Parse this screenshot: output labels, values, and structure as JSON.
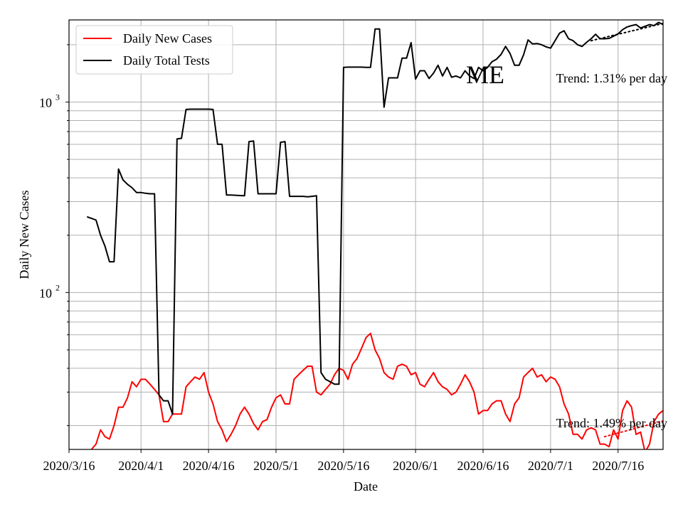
{
  "chart_data": {
    "type": "line",
    "title": "",
    "state_label": "ME",
    "xlabel": "Date",
    "ylabel": "Daily New Cases",
    "yscale": "log",
    "ylim": [
      15,
      2700
    ],
    "xlim": [
      "2020-03-16",
      "2020-07-26"
    ],
    "x_ticks": [
      "2020/3/16",
      "2020/4/1",
      "2020/4/16",
      "2020/5/1",
      "2020/5/16",
      "2020/6/1",
      "2020/6/16",
      "2020/7/1",
      "2020/7/16"
    ],
    "y_ticks": [
      {
        "base": "10",
        "exp": "2",
        "value": 100
      },
      {
        "base": "10",
        "exp": "3",
        "value": 1000
      }
    ],
    "grid": true,
    "legend_position": "upper-left",
    "series": [
      {
        "name": "Daily New Cases",
        "color": "#ff0000",
        "points": [
          [
            "2020-03-21",
            15
          ],
          [
            "2020-03-22",
            16
          ],
          [
            "2020-03-23",
            19
          ],
          [
            "2020-03-24",
            17.5
          ],
          [
            "2020-03-25",
            17
          ],
          [
            "2020-03-26",
            20
          ],
          [
            "2020-03-27",
            25
          ],
          [
            "2020-03-28",
            25
          ],
          [
            "2020-03-29",
            28
          ],
          [
            "2020-03-30",
            34
          ],
          [
            "2020-03-31",
            32
          ],
          [
            "2020-04-01",
            35
          ],
          [
            "2020-04-02",
            35
          ],
          [
            "2020-04-03",
            33
          ],
          [
            "2020-04-04",
            31
          ],
          [
            "2020-04-05",
            29
          ],
          [
            "2020-04-06",
            21
          ],
          [
            "2020-04-07",
            21
          ],
          [
            "2020-04-08",
            23
          ],
          [
            "2020-04-09",
            23
          ],
          [
            "2020-04-10",
            23
          ],
          [
            "2020-04-11",
            32
          ],
          [
            "2020-04-12",
            34
          ],
          [
            "2020-04-13",
            36
          ],
          [
            "2020-04-14",
            35
          ],
          [
            "2020-04-15",
            38
          ],
          [
            "2020-04-16",
            30
          ],
          [
            "2020-04-17",
            26
          ],
          [
            "2020-04-18",
            21
          ],
          [
            "2020-04-19",
            19
          ],
          [
            "2020-04-20",
            16.5
          ],
          [
            "2020-04-21",
            18
          ],
          [
            "2020-04-22",
            20
          ],
          [
            "2020-04-23",
            23
          ],
          [
            "2020-04-24",
            25
          ],
          [
            "2020-04-25",
            23
          ],
          [
            "2020-04-26",
            20.5
          ],
          [
            "2020-04-27",
            19
          ],
          [
            "2020-04-28",
            21
          ],
          [
            "2020-04-29",
            21.5
          ],
          [
            "2020-04-30",
            25
          ],
          [
            "2020-05-01",
            28
          ],
          [
            "2020-05-02",
            29
          ],
          [
            "2020-05-03",
            26
          ],
          [
            "2020-05-04",
            26
          ],
          [
            "2020-05-05",
            35
          ],
          [
            "2020-05-06",
            37
          ],
          [
            "2020-05-07",
            39
          ],
          [
            "2020-05-08",
            41
          ],
          [
            "2020-05-09",
            41
          ],
          [
            "2020-05-10",
            30
          ],
          [
            "2020-05-11",
            29
          ],
          [
            "2020-05-12",
            31
          ],
          [
            "2020-05-13",
            33
          ],
          [
            "2020-05-14",
            37
          ],
          [
            "2020-05-15",
            40
          ],
          [
            "2020-05-16",
            39
          ],
          [
            "2020-05-17",
            35
          ],
          [
            "2020-05-18",
            42
          ],
          [
            "2020-05-19",
            45
          ],
          [
            "2020-05-20",
            51
          ],
          [
            "2020-05-21",
            58
          ],
          [
            "2020-05-22",
            61
          ],
          [
            "2020-05-23",
            50
          ],
          [
            "2020-05-24",
            45
          ],
          [
            "2020-05-25",
            38
          ],
          [
            "2020-05-26",
            36
          ],
          [
            "2020-05-27",
            35
          ],
          [
            "2020-05-28",
            41
          ],
          [
            "2020-05-29",
            42
          ],
          [
            "2020-05-30",
            41
          ],
          [
            "2020-05-31",
            37
          ],
          [
            "2020-06-01",
            38
          ],
          [
            "2020-06-02",
            33
          ],
          [
            "2020-06-03",
            32
          ],
          [
            "2020-06-04",
            35
          ],
          [
            "2020-06-05",
            38
          ],
          [
            "2020-06-06",
            34
          ],
          [
            "2020-06-07",
            32
          ],
          [
            "2020-06-08",
            31
          ],
          [
            "2020-06-09",
            29
          ],
          [
            "2020-06-10",
            30
          ],
          [
            "2020-06-11",
            33
          ],
          [
            "2020-06-12",
            37
          ],
          [
            "2020-06-13",
            34
          ],
          [
            "2020-06-14",
            30
          ],
          [
            "2020-06-15",
            23
          ],
          [
            "2020-06-16",
            24
          ],
          [
            "2020-06-17",
            24
          ],
          [
            "2020-06-18",
            26
          ],
          [
            "2020-06-19",
            27
          ],
          [
            "2020-06-20",
            27
          ],
          [
            "2020-06-21",
            23
          ],
          [
            "2020-06-22",
            21
          ],
          [
            "2020-06-23",
            26
          ],
          [
            "2020-06-24",
            28
          ],
          [
            "2020-06-25",
            36
          ],
          [
            "2020-06-26",
            38
          ],
          [
            "2020-06-27",
            40
          ],
          [
            "2020-06-28",
            36
          ],
          [
            "2020-06-29",
            37
          ],
          [
            "2020-06-30",
            34
          ],
          [
            "2020-07-01",
            36
          ],
          [
            "2020-07-02",
            35
          ],
          [
            "2020-07-03",
            32
          ],
          [
            "2020-07-04",
            26
          ],
          [
            "2020-07-05",
            23
          ],
          [
            "2020-07-06",
            18
          ],
          [
            "2020-07-07",
            18
          ],
          [
            "2020-07-08",
            17
          ],
          [
            "2020-07-09",
            19
          ],
          [
            "2020-07-10",
            19.5
          ],
          [
            "2020-07-11",
            19
          ],
          [
            "2020-07-12",
            16
          ],
          [
            "2020-07-13",
            16
          ],
          [
            "2020-07-14",
            15.5
          ],
          [
            "2020-07-15",
            19
          ],
          [
            "2020-07-16",
            17
          ],
          [
            "2020-07-17",
            24
          ],
          [
            "2020-07-18",
            27
          ],
          [
            "2020-07-19",
            25
          ],
          [
            "2020-07-20",
            18
          ],
          [
            "2020-07-21",
            18.5
          ],
          [
            "2020-07-22",
            14.5
          ],
          [
            "2020-07-23",
            16
          ],
          [
            "2020-07-24",
            21
          ],
          [
            "2020-07-25",
            23
          ],
          [
            "2020-07-26",
            24
          ]
        ]
      },
      {
        "name": "Daily Total Tests",
        "color": "#000000",
        "points": [
          [
            "2020-03-20",
            250
          ],
          [
            "2020-03-21",
            245
          ],
          [
            "2020-03-22",
            240
          ],
          [
            "2020-03-23",
            200
          ],
          [
            "2020-03-24",
            175
          ],
          [
            "2020-03-25",
            145
          ],
          [
            "2020-03-26",
            145
          ],
          [
            "2020-03-27",
            445
          ],
          [
            "2020-03-28",
            390
          ],
          [
            "2020-03-29",
            370
          ],
          [
            "2020-03-30",
            355
          ],
          [
            "2020-03-31",
            335
          ],
          [
            "2020-04-01",
            335
          ],
          [
            "2020-04-02",
            332
          ],
          [
            "2020-04-03",
            330
          ],
          [
            "2020-04-04",
            330
          ],
          [
            "2020-04-05",
            29
          ],
          [
            "2020-04-06",
            27
          ],
          [
            "2020-04-07",
            27
          ],
          [
            "2020-04-08",
            23
          ],
          [
            "2020-04-09",
            640
          ],
          [
            "2020-04-10",
            645
          ],
          [
            "2020-04-11",
            915
          ],
          [
            "2020-04-12",
            918
          ],
          [
            "2020-04-13",
            918
          ],
          [
            "2020-04-14",
            918
          ],
          [
            "2020-04-15",
            918
          ],
          [
            "2020-04-16",
            918
          ],
          [
            "2020-04-17",
            915
          ],
          [
            "2020-04-18",
            600
          ],
          [
            "2020-04-19",
            600
          ],
          [
            "2020-04-20",
            325
          ],
          [
            "2020-04-21",
            325
          ],
          [
            "2020-04-22",
            324
          ],
          [
            "2020-04-23",
            323
          ],
          [
            "2020-04-24",
            322
          ],
          [
            "2020-04-25",
            620
          ],
          [
            "2020-04-26",
            625
          ],
          [
            "2020-04-27",
            330
          ],
          [
            "2020-04-28",
            330
          ],
          [
            "2020-04-29",
            330
          ],
          [
            "2020-04-30",
            330
          ],
          [
            "2020-05-01",
            330
          ],
          [
            "2020-05-02",
            615
          ],
          [
            "2020-05-03",
            620
          ],
          [
            "2020-05-04",
            320
          ],
          [
            "2020-05-05",
            320
          ],
          [
            "2020-05-06",
            320
          ],
          [
            "2020-05-07",
            320
          ],
          [
            "2020-05-08",
            318
          ],
          [
            "2020-05-09",
            320
          ],
          [
            "2020-05-10",
            322
          ],
          [
            "2020-05-11",
            38
          ],
          [
            "2020-05-12",
            35
          ],
          [
            "2020-05-13",
            34
          ],
          [
            "2020-05-14",
            33
          ],
          [
            "2020-05-15",
            33
          ],
          [
            "2020-05-16",
            1520
          ],
          [
            "2020-05-17",
            1525
          ],
          [
            "2020-05-18",
            1525
          ],
          [
            "2020-05-19",
            1525
          ],
          [
            "2020-05-20",
            1525
          ],
          [
            "2020-05-21",
            1522
          ],
          [
            "2020-05-22",
            1520
          ],
          [
            "2020-05-23",
            2420
          ],
          [
            "2020-05-24",
            2420
          ],
          [
            "2020-05-25",
            940
          ],
          [
            "2020-05-26",
            1340
          ],
          [
            "2020-05-27",
            1340
          ],
          [
            "2020-05-28",
            1340
          ],
          [
            "2020-05-29",
            1700
          ],
          [
            "2020-05-30",
            1700
          ],
          [
            "2020-05-31",
            2050
          ],
          [
            "2020-06-01",
            1320
          ],
          [
            "2020-06-02",
            1460
          ],
          [
            "2020-06-03",
            1460
          ],
          [
            "2020-06-04",
            1330
          ],
          [
            "2020-06-05",
            1420
          ],
          [
            "2020-06-06",
            1560
          ],
          [
            "2020-06-07",
            1370
          ],
          [
            "2020-06-08",
            1520
          ],
          [
            "2020-06-09",
            1350
          ],
          [
            "2020-06-10",
            1370
          ],
          [
            "2020-06-11",
            1340
          ],
          [
            "2020-06-12",
            1460
          ],
          [
            "2020-06-13",
            1370
          ],
          [
            "2020-06-14",
            1330
          ],
          [
            "2020-06-15",
            1520
          ],
          [
            "2020-06-16",
            1460
          ],
          [
            "2020-06-17",
            1520
          ],
          [
            "2020-06-18",
            1630
          ],
          [
            "2020-06-19",
            1680
          ],
          [
            "2020-06-20",
            1780
          ],
          [
            "2020-06-21",
            1960
          ],
          [
            "2020-06-22",
            1800
          ],
          [
            "2020-06-23",
            1560
          ],
          [
            "2020-06-24",
            1560
          ],
          [
            "2020-06-25",
            1770
          ],
          [
            "2020-06-26",
            2120
          ],
          [
            "2020-06-27",
            2020
          ],
          [
            "2020-06-28",
            2030
          ],
          [
            "2020-06-29",
            2000
          ],
          [
            "2020-06-30",
            1950
          ],
          [
            "2020-07-01",
            1920
          ],
          [
            "2020-07-02",
            2100
          ],
          [
            "2020-07-03",
            2300
          ],
          [
            "2020-07-04",
            2370
          ],
          [
            "2020-07-05",
            2150
          ],
          [
            "2020-07-06",
            2100
          ],
          [
            "2020-07-07",
            2000
          ],
          [
            "2020-07-08",
            1960
          ],
          [
            "2020-07-09",
            2060
          ],
          [
            "2020-07-10",
            2150
          ],
          [
            "2020-07-11",
            2270
          ],
          [
            "2020-07-12",
            2150
          ],
          [
            "2020-07-13",
            2150
          ],
          [
            "2020-07-14",
            2160
          ],
          [
            "2020-07-15",
            2220
          ],
          [
            "2020-07-16",
            2280
          ],
          [
            "2020-07-17",
            2400
          ],
          [
            "2020-07-18",
            2480
          ],
          [
            "2020-07-19",
            2520
          ],
          [
            "2020-07-20",
            2550
          ],
          [
            "2020-07-21",
            2450
          ],
          [
            "2020-07-22",
            2500
          ],
          [
            "2020-07-23",
            2550
          ],
          [
            "2020-07-24",
            2520
          ],
          [
            "2020-07-25",
            2620
          ],
          [
            "2020-07-26",
            2550
          ],
          [
            "2020-07-27",
            2500
          ]
        ]
      }
    ],
    "trend_lines": [
      {
        "series": "Daily Total Tests",
        "color": "#000000",
        "label": "Trend: 1.31% per day",
        "points": [
          [
            "2020-07-10",
            2100
          ],
          [
            "2020-07-27",
            2620
          ]
        ]
      },
      {
        "series": "Daily New Cases",
        "color": "#ff0000",
        "label": "Trend: 1.49% per day",
        "points": [
          [
            "2020-07-13",
            17.5
          ],
          [
            "2020-07-27",
            21.5
          ]
        ]
      }
    ]
  }
}
